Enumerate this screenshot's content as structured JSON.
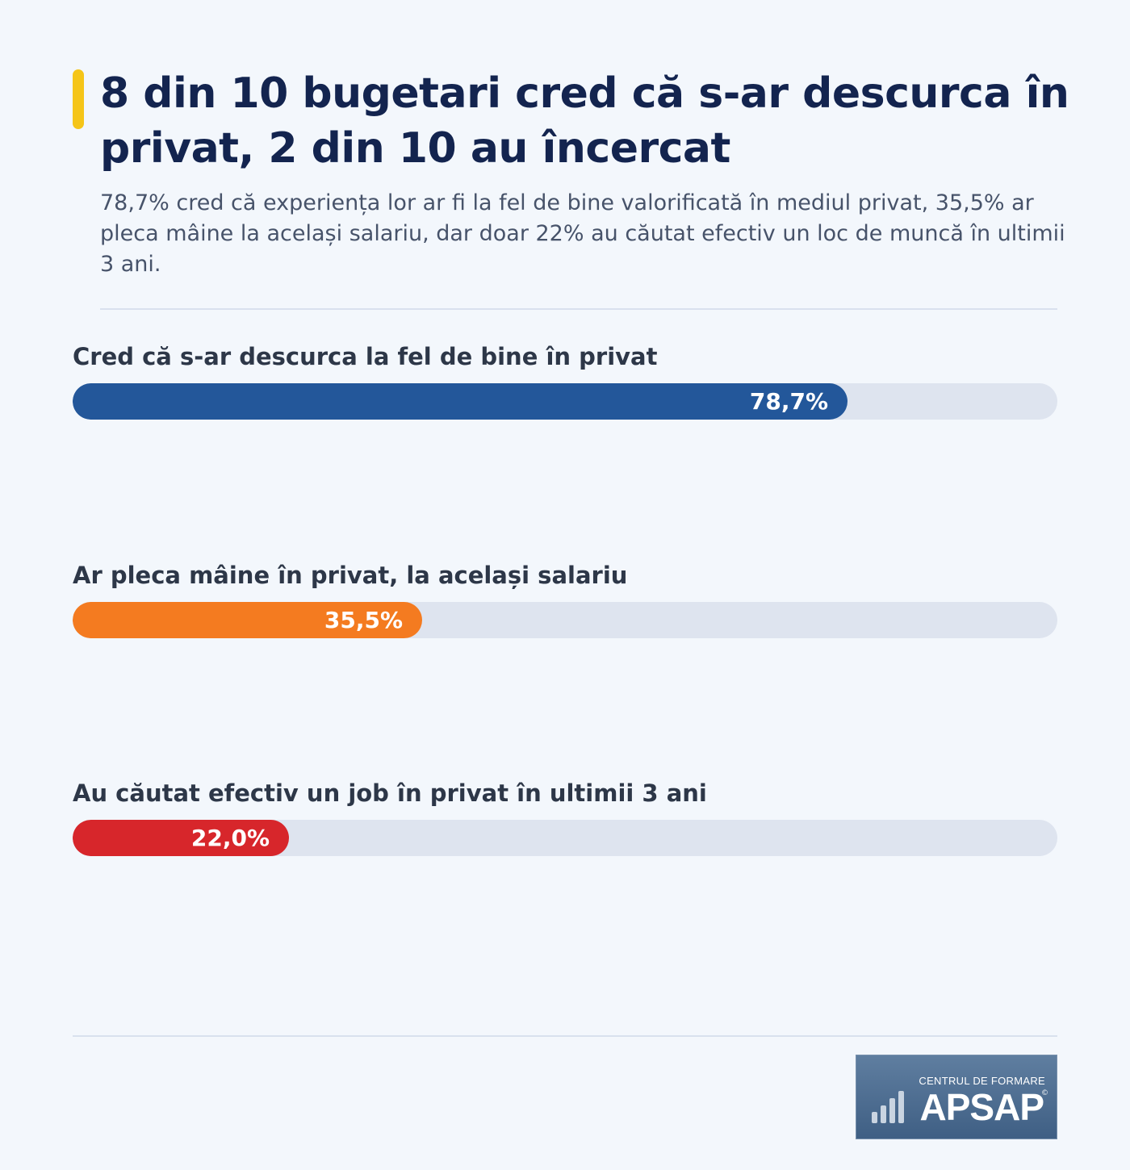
{
  "title": "8 din 10 bugetari cred că s-ar descurca în privat, 2 din 10 au încercat",
  "subtitle": "78,7% cred că experiența lor ar fi la fel de bine valorificată în mediul privat, 35,5% ar pleca mâine la același salariu, dar doar 22% au căutat efectiv un loc de muncă în ultimii 3 ani.",
  "chart_data": {
    "type": "bar",
    "orientation": "horizontal",
    "xlim": [
      0,
      100
    ],
    "unit": "%",
    "grid": false,
    "categories": [
      "Cred că s-ar descurca la fel de bine în privat",
      "Ar pleca mâine în privat, la același salariu",
      "Au căutat efectiv un job în privat în ultimii 3 ani"
    ],
    "values": [
      78.7,
      35.5,
      22.0
    ],
    "value_labels": [
      "78,7%",
      "35,5%",
      "22,0%"
    ],
    "colors": [
      "#23579a",
      "#f47b20",
      "#d7262b"
    ],
    "track_color": "#dee4ef"
  },
  "logo": {
    "top_text": "CENTRUL DE FORMARE",
    "main_text": "APSAP",
    "copyright": "©"
  },
  "colors": {
    "background": "#f3f7fc",
    "title": "#13244f",
    "accent": "#f5c518"
  }
}
